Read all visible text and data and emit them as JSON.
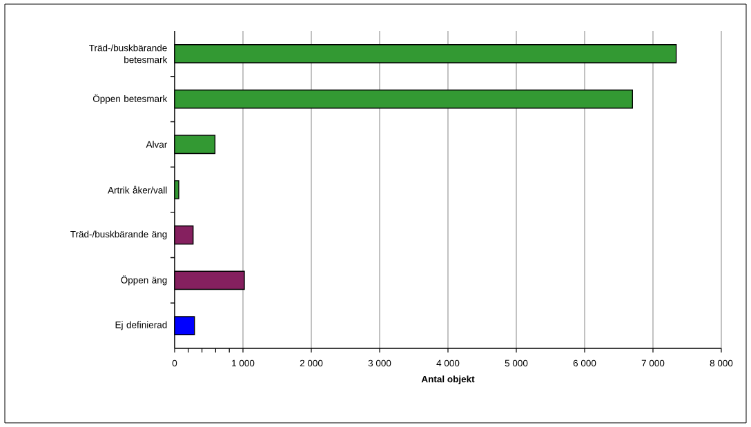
{
  "chart_data": {
    "type": "bar",
    "orientation": "horizontal",
    "xlabel": "Antal objekt",
    "categories": [
      "Träd-/buskbärande betesmark",
      "Öppen betesmark",
      "Alvar",
      "Artrik åker/vall",
      "Träd-/buskbärande äng",
      "Öppen äng",
      "Ej definierad"
    ],
    "values": [
      7340,
      6700,
      590,
      60,
      270,
      1020,
      290
    ],
    "colors": [
      "#339933",
      "#339933",
      "#339933",
      "#339933",
      "#85205f",
      "#85205f",
      "#0000ff"
    ],
    "xlim": [
      0,
      8000
    ],
    "xticks": [
      0,
      {
        "value": 1000,
        "label": "1 000"
      },
      {
        "value": 2000,
        "label": "2 000"
      },
      {
        "value": 3000,
        "label": "3 000"
      },
      {
        "value": 4000,
        "label": "4 000"
      },
      {
        "value": 5000,
        "label": "5 000"
      },
      {
        "value": 6000,
        "label": "6 000"
      },
      {
        "value": 7000,
        "label": "7 000"
      },
      {
        "value": 8000,
        "label": "8 000"
      },
      {
        "value": 200,
        "label": null
      },
      {
        "value": 400,
        "label": null
      },
      {
        "value": 600,
        "label": null
      },
      {
        "value": 800,
        "label": null
      }
    ],
    "grid": "x"
  }
}
